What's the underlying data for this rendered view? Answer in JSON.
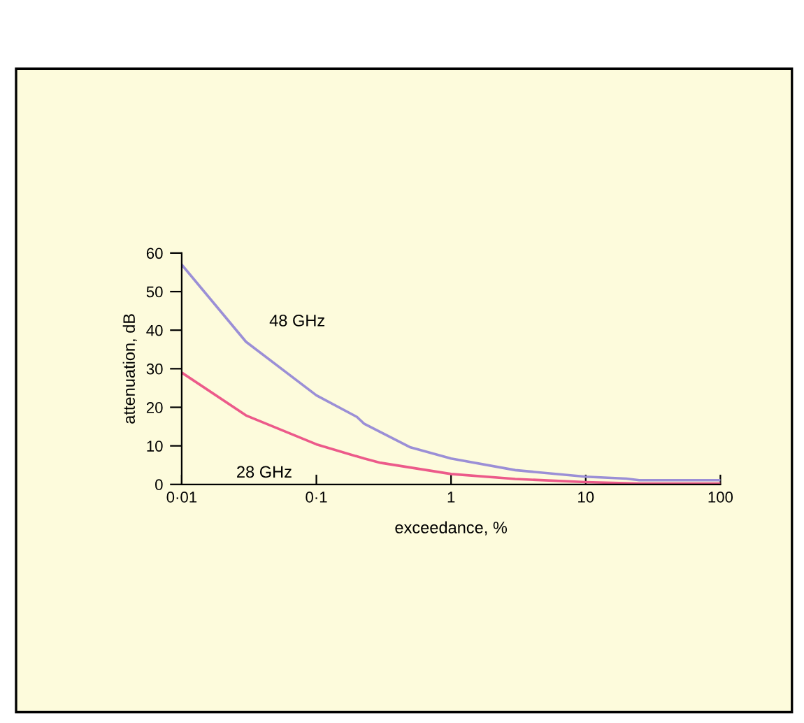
{
  "chart_data": {
    "type": "line",
    "xlabel": "exceedance, %",
    "ylabel": "attenuation, dB",
    "log": "x",
    "x": [
      0.01,
      0.03,
      0.1,
      0.2,
      0.227,
      0.3,
      0.5,
      1,
      3,
      10,
      20,
      25,
      100
    ],
    "series": [
      {
        "name": "48 GHz",
        "color": "#9b8fd6",
        "values": [
          57,
          37,
          23.1,
          17.5,
          15.7,
          null,
          9.6,
          6.7,
          3.7,
          2.0,
          1.5,
          1.1,
          1.1
        ]
      },
      {
        "name": "28 GHz",
        "color": "#ec5a8a",
        "values": [
          29,
          17.9,
          10.4,
          null,
          6.7,
          5.6,
          null,
          2.7,
          1.4,
          0.6,
          null,
          0.2,
          0.2
        ]
      }
    ],
    "xlim": [
      0.01,
      100
    ],
    "xticks": [
      {
        "value": 0.01,
        "label": "0·01"
      },
      {
        "value": 0.1,
        "label": "0·1"
      },
      1,
      10,
      100
    ],
    "ylim": [
      0,
      60
    ],
    "yticks": [
      0,
      10,
      20,
      30,
      40,
      50,
      60
    ],
    "grid": false,
    "legend": false
  }
}
